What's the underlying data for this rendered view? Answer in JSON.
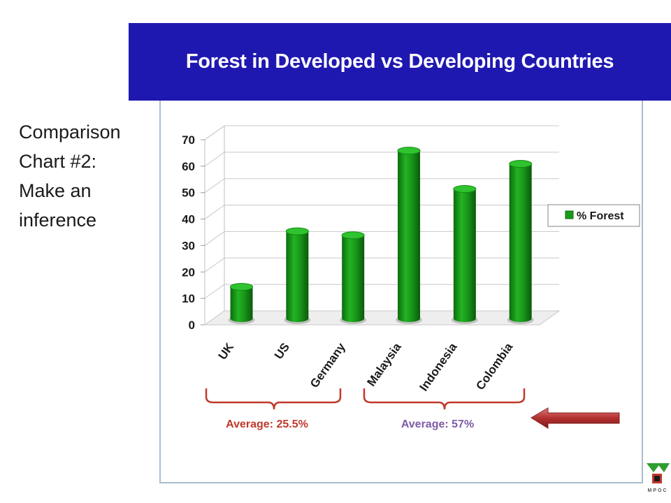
{
  "slide": {
    "side_lines": [
      "Comparison",
      "Chart #2:",
      "Make an",
      "inference"
    ],
    "banner_color": "#1f18b0"
  },
  "chart_data": {
    "type": "bar",
    "title": "Forest in Developed vs Developing Countries",
    "categories": [
      "UK",
      "US",
      "Germany",
      "Malaysia",
      "Indonesia",
      "Colombia"
    ],
    "series": [
      {
        "name": "% Forest",
        "values": [
          12,
          33,
          31.5,
          63.5,
          49,
          58.5
        ],
        "color": "#1a9a1a"
      }
    ],
    "ylim": [
      0,
      70
    ],
    "yticks": [
      "0",
      "10",
      "20",
      "30",
      "40",
      "50",
      "60",
      "70"
    ],
    "grid": true,
    "legend": "right",
    "style": "3d-cylinder",
    "groups": [
      {
        "label": "Average: 25.5%",
        "color": "#c0392b",
        "text_color": "#c0392b"
      },
      {
        "label": "Average: 57%",
        "color": "#c0392b",
        "text_color": "#7e5ba6"
      }
    ]
  },
  "decor": {
    "arrow": "left-arrow-icon",
    "logo_text": "MPOC"
  }
}
